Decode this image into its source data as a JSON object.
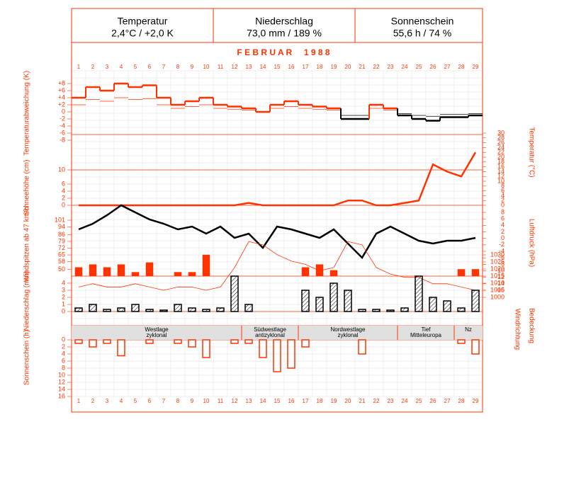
{
  "header": [
    {
      "label": "Temperatur",
      "value": "2,4°C / +2,0 K"
    },
    {
      "label": "Niederschlag",
      "value": "73,0 mm / 189 %"
    },
    {
      "label": "Sonnenschein",
      "value": "55,6 h / 74 %"
    }
  ],
  "month_title": "F E B R U A R     1 9 8 8",
  "weather_types": [
    [
      "Westlage",
      "zyklonal"
    ],
    [
      "Südwestlage",
      "antizyklonal"
    ],
    [
      "Nordwestlage",
      "zyklonal"
    ],
    [
      "Tief",
      "Mitteleuropa"
    ],
    [
      "Nz"
    ]
  ],
  "band_labels": [
    "Windrichtung",
    "Bedeckung"
  ],
  "chart_data": [
    {
      "type": "step",
      "y_label": "Temperaturabweichung (K)",
      "categories": [
        1,
        2,
        3,
        4,
        5,
        6,
        7,
        8,
        9,
        10,
        11,
        12,
        13,
        14,
        15,
        16,
        17,
        18,
        19,
        20,
        21,
        22,
        23,
        24,
        25,
        26,
        27,
        28,
        29
      ],
      "values": [
        4,
        7,
        6,
        8,
        7,
        7.5,
        4,
        2,
        3,
        4,
        2,
        1.5,
        1,
        0,
        2,
        3,
        2,
        1.5,
        1,
        -2,
        -2,
        2,
        1,
        -1,
        -2,
        -2.5,
        -1.5,
        -1.5,
        -1
      ],
      "color": "#ff3300",
      "negative_color": "#000000",
      "ylim": [
        -8,
        8
      ],
      "yticks": [
        {
          "value": 8,
          "label": "+8"
        },
        {
          "value": 6,
          "label": "+6"
        },
        {
          "value": 4,
          "label": "+4"
        },
        {
          "value": 2,
          "label": "+2"
        },
        0,
        -2,
        -4,
        -6,
        -8
      ]
    },
    {
      "type": "line",
      "y_label": "Schneehöhe (cm)",
      "y2_label": "Temperatur (°C)",
      "ylim": [
        0,
        10
      ],
      "yticks": [
        0,
        2,
        4,
        6,
        10
      ],
      "y2lim": [
        0,
        30
      ],
      "y2ticks": [
        0,
        2,
        4,
        6,
        8,
        10,
        12,
        14,
        16,
        18,
        20,
        22,
        24,
        26,
        28,
        30
      ],
      "series": [
        {
          "color": "#ff3300",
          "axis": "y2",
          "width": 2.5,
          "values": [
            0,
            0,
            0,
            0,
            0,
            0,
            0,
            0,
            0,
            0,
            0,
            0,
            1,
            0,
            0,
            0,
            0,
            0,
            0,
            2,
            2,
            0,
            0,
            1,
            2,
            17,
            14,
            12,
            22
          ]
        }
      ]
    },
    {
      "type": "bar",
      "y_label": "Windspitzen ab 47 km/h",
      "ylim": [
        43,
        101
      ],
      "yticks": [
        50,
        58,
        65,
        72,
        79,
        86,
        94,
        101
      ],
      "color": "#ff3300",
      "values": [
        52,
        55,
        52,
        55,
        47,
        57,
        null,
        47,
        47,
        65,
        null,
        null,
        null,
        null,
        null,
        null,
        52,
        55,
        49,
        null,
        null,
        null,
        null,
        null,
        null,
        null,
        null,
        50,
        50
      ]
    },
    {
      "type": "line",
      "y2_label": "Luftdruck (hPa)",
      "y2lim": [
        1000,
        1080
      ],
      "y2ticks": [
        1000,
        1005,
        1010,
        1015,
        1020,
        1025,
        1030
      ],
      "series": [
        {
          "color": "#000000",
          "axis": "y2",
          "width": 2.5,
          "values": [
            1048,
            1052,
            1058,
            1065,
            1060,
            1055,
            1052,
            1048,
            1050,
            1045,
            1050,
            1042,
            1045,
            1035,
            1050,
            1048,
            1045,
            1042,
            1048,
            1038,
            1028,
            1045,
            1050,
            1045,
            1040,
            1038,
            1040,
            1040,
            1042
          ]
        }
      ]
    },
    {
      "type": "line",
      "y2lim": [
        -16,
        8
      ],
      "y2ticks": [
        8,
        6,
        4,
        2,
        0,
        -2,
        -4,
        -6,
        -8,
        -10,
        -12,
        -14,
        -16
      ],
      "series": [
        {
          "color": "#ff3300",
          "axis": "y2",
          "width": 0.8,
          "values": [
            -15,
            -14,
            -15,
            -15,
            -14,
            -15,
            -16,
            -15,
            -15,
            -16,
            -15,
            -9,
            -1,
            -2,
            -5,
            -7,
            -8,
            -10,
            -9,
            -1,
            -2,
            -9,
            -11,
            -12,
            -12,
            -14,
            -14,
            -15,
            -16
          ]
        }
      ]
    },
    {
      "type": "bar",
      "y_label": "Niederschlag (mm)",
      "ylim": [
        0,
        5
      ],
      "yticks": [
        0,
        1,
        2,
        3,
        4
      ],
      "color": "#000000",
      "hatch": true,
      "values": [
        0.5,
        1,
        0.3,
        0.5,
        1,
        0.3,
        0.2,
        1,
        0.5,
        0.3,
        0.5,
        5,
        1,
        0,
        0,
        0,
        3,
        2,
        4,
        3,
        0.3,
        0.3,
        0.2,
        0.5,
        5,
        2,
        1.5,
        0.5,
        3
      ]
    },
    {
      "type": "bar",
      "y_label": "Sonnenschein (h)",
      "ylim": [
        0,
        16
      ],
      "yticks": [
        0,
        2,
        4,
        6,
        8,
        10,
        12,
        14,
        16
      ],
      "color": "#ff3300",
      "inverted": true,
      "values": [
        1,
        2,
        1,
        4.5,
        0,
        1,
        0,
        1,
        2,
        5,
        0,
        1,
        1,
        5,
        9,
        8,
        2,
        0,
        0,
        0,
        4,
        0,
        0,
        0,
        0,
        0,
        0,
        1,
        4
      ]
    }
  ]
}
